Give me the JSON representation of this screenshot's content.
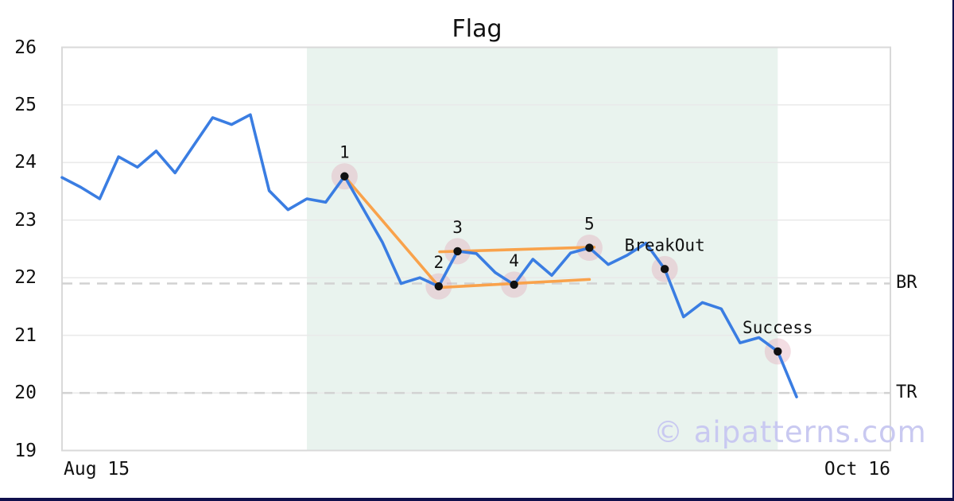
{
  "title": "Flag",
  "watermark": "© aipatterns.com",
  "chart_data": {
    "type": "line",
    "title": "Flag",
    "x_start_label": "Aug 15",
    "x_end_label": "Oct 16",
    "ylim": [
      19,
      26
    ],
    "y_ticks": [
      26,
      25,
      24,
      23,
      22,
      21,
      20,
      19
    ],
    "grid": "horizontal",
    "series": [
      {
        "name": "price",
        "values": [
          23.74,
          23.57,
          23.37,
          24.1,
          23.92,
          24.2,
          23.82,
          24.3,
          24.78,
          24.66,
          24.83,
          23.51,
          23.18,
          23.37,
          23.31,
          23.76,
          23.19,
          22.62,
          21.9,
          22.0,
          21.85,
          22.46,
          22.42,
          22.09,
          21.88,
          22.32,
          22.04,
          22.43,
          22.52,
          22.23,
          22.39,
          22.6,
          22.15,
          21.32,
          21.57,
          21.46,
          20.87,
          20.96,
          20.72,
          19.93
        ]
      }
    ],
    "pattern_zone": {
      "start_index": 13,
      "end_index": 38
    },
    "levels": [
      {
        "label": "BR",
        "value": 21.9
      },
      {
        "label": "TR",
        "value": 20.0
      }
    ],
    "annotations": [
      {
        "label": "1",
        "index": 15
      },
      {
        "label": "2",
        "index": 20
      },
      {
        "label": "3",
        "index": 21
      },
      {
        "label": "4",
        "index": 24
      },
      {
        "label": "5",
        "index": 28
      },
      {
        "label": "BreakOut",
        "index": 32
      },
      {
        "label": "Success",
        "index": 38
      }
    ],
    "trend_lines": [
      {
        "name": "pole",
        "from_index": 15.0,
        "from_value": 23.76,
        "to_index": 20.0,
        "to_value": 21.85
      },
      {
        "name": "flag-upper",
        "from_index": 20.05,
        "from_value": 22.45,
        "to_index": 28.25,
        "to_value": 22.53
      },
      {
        "name": "flag-lower",
        "from_index": 20.0,
        "from_value": 21.83,
        "to_index": 28.0,
        "to_value": 21.97
      }
    ],
    "colors": {
      "line": "#3a7de2",
      "pattern": "#f9a24b",
      "zone": "#e9f3ee",
      "level_dash": "#d2d2d2",
      "grid": "#e9e9e9",
      "border": "#d9d9d9",
      "marker_dot": "#111111",
      "marker_halo": "rgba(225,170,185,0.40)",
      "text": "#111111",
      "watermark": "#c9c9f1",
      "frame": "#10104d"
    }
  }
}
